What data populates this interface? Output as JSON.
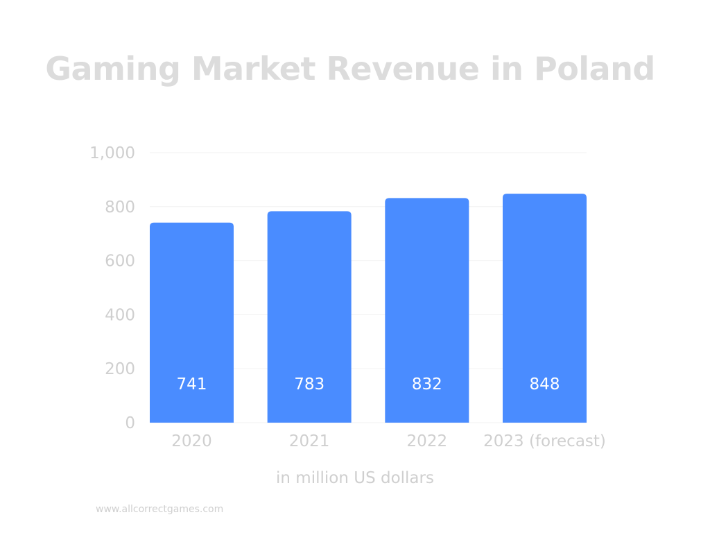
{
  "chart_data": {
    "type": "bar",
    "title": "Gaming Market Revenue in Poland",
    "xlabel": "in million US dollars",
    "ylabel": "",
    "categories": [
      "2020",
      "2021",
      "2022",
      "2023 (forecast)"
    ],
    "values": [
      741,
      783,
      832,
      848
    ],
    "value_labels": [
      "741",
      "783",
      "832",
      "848"
    ],
    "ylim": [
      0,
      1000
    ],
    "yticks": [
      0,
      200,
      400,
      600,
      800,
      1000
    ],
    "ytick_labels": [
      "0",
      "200",
      "400",
      "600",
      "800",
      "1,000"
    ],
    "grid": true,
    "bar_color": "#4a8cff",
    "text_color": "#cfcfcf",
    "grid_color": "#f2f2f2"
  },
  "footer": {
    "source": "www.allcorrectgames.com"
  }
}
